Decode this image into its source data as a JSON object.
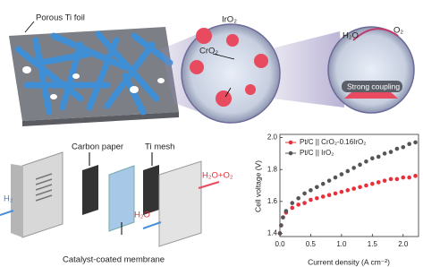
{
  "labels": {
    "foil": "Porous Ti foil",
    "iro2": "IrO₂",
    "cro2": "CrO₂",
    "h2o_top": "H₂O",
    "o2_top": "O₂",
    "coupling": "Strong coupling",
    "carbon_paper": "Carbon paper",
    "ti_mesh": "Ti mesh",
    "h2o_o2": "H₂O+O₂",
    "h2": "H₂",
    "h2o": "H₂O",
    "membrane": "Catalyst-coated membrane"
  },
  "chart_data": {
    "type": "scatter",
    "ylabel": "Cell voltage (V)",
    "xlabel": "Current density (A cm⁻²)",
    "x": [
      0,
      0.02,
      0.05,
      0.1,
      0.2,
      0.3,
      0.4,
      0.5,
      0.6,
      0.7,
      0.8,
      0.9,
      1.0,
      1.1,
      1.2,
      1.3,
      1.4,
      1.5,
      1.6,
      1.7,
      1.8,
      1.9,
      2.0,
      2.1,
      2.2
    ],
    "series": [
      {
        "name": "Pt/C || CrO₂-0.16IrO₂",
        "color": "#e8303a",
        "values": [
          1.4,
          1.45,
          1.5,
          1.53,
          1.56,
          1.58,
          1.59,
          1.61,
          1.62,
          1.63,
          1.64,
          1.65,
          1.66,
          1.67,
          1.68,
          1.69,
          1.7,
          1.71,
          1.72,
          1.73,
          1.74,
          1.74,
          1.75,
          1.75,
          1.76
        ]
      },
      {
        "name": "Pt/C || IrO₂",
        "color": "#555555",
        "values": [
          1.4,
          1.45,
          1.5,
          1.54,
          1.59,
          1.62,
          1.65,
          1.67,
          1.69,
          1.71,
          1.73,
          1.75,
          1.77,
          1.79,
          1.81,
          1.83,
          1.85,
          1.87,
          1.88,
          1.9,
          1.91,
          1.93,
          1.94,
          1.96,
          1.97
        ]
      }
    ],
    "xlim": [
      0,
      2.25
    ],
    "ylim": [
      1.38,
      2.02
    ],
    "xticks": [
      {
        "value": 0,
        "label": "0.0"
      },
      {
        "value": 0.5,
        "label": "0.5"
      },
      {
        "value": 1,
        "label": "1.0"
      },
      {
        "value": 1.5,
        "label": "1.5"
      },
      {
        "value": 2,
        "label": "2.0"
      }
    ],
    "yticks": [
      1.4,
      1.6,
      1.8,
      {
        "value": 2,
        "label": "2.0"
      }
    ],
    "legend": "upper left"
  }
}
